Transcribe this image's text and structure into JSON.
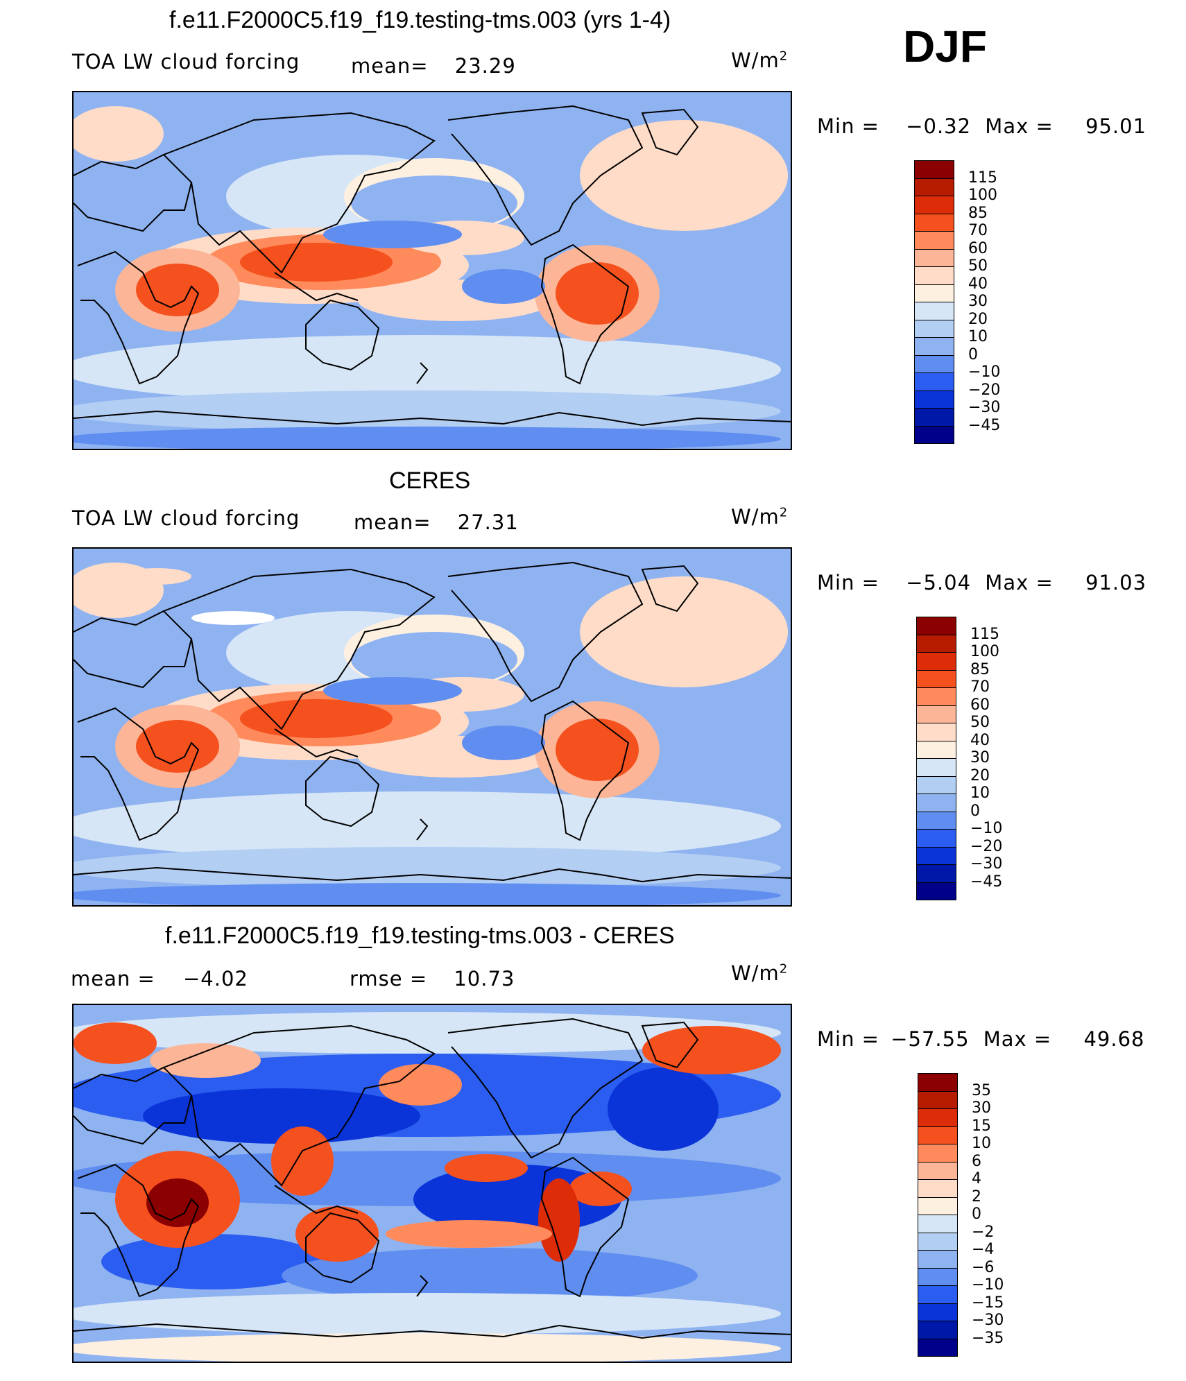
{
  "season": "DJF",
  "units_exp": "W/m",
  "units_sup": "2",
  "panels": [
    {
      "id": "model",
      "title": "f.e11.F2000C5.f19_f19.testing-tms.003 (yrs 1-4)",
      "left_label": "TOA LW cloud forcing",
      "stat_label": "mean=",
      "stat_value": "23.29",
      "minmax_min_label": "Min =",
      "minmax_min": "−0.32",
      "minmax_max_label": "Max =",
      "minmax_max": "95.01",
      "legend_labels": [
        "115",
        "100",
        "85",
        "70",
        "60",
        "50",
        "40",
        "30",
        "20",
        "10",
        "0",
        "−10",
        "−20",
        "−30",
        "−45"
      ],
      "legend_colors": [
        "#8b0000",
        "#b71c00",
        "#dc2c08",
        "#f4511e",
        "#ff8a5c",
        "#fcb596",
        "#fedcc8",
        "#fdf0e1",
        "#d6e6f6",
        "#b3cef3",
        "#8fb3f1",
        "#5f8ef0",
        "#2a5df0",
        "#0a34d8",
        "#0018a8",
        "#00008b"
      ],
      "chart_data": {
        "type": "heatmap",
        "title": "f.e11.F2000C5.f19_f19.testing-tms.003 (yrs 1-4)",
        "variable": "TOA LW cloud forcing",
        "units": "W/m2",
        "mean": 23.29,
        "min": -0.32,
        "max": 95.01,
        "contour_levels": [
          -45,
          -30,
          -20,
          -10,
          0,
          10,
          20,
          30,
          40,
          50,
          60,
          70,
          85,
          100,
          115
        ]
      }
    },
    {
      "id": "obs",
      "title": "CERES",
      "left_label": "TOA LW cloud forcing",
      "stat_label": "mean=",
      "stat_value": "27.31",
      "minmax_min_label": "Min =",
      "minmax_min": "−5.04",
      "minmax_max_label": "Max =",
      "minmax_max": "91.03",
      "legend_labels": [
        "115",
        "100",
        "85",
        "70",
        "60",
        "50",
        "40",
        "30",
        "20",
        "10",
        "0",
        "−10",
        "−20",
        "−30",
        "−45"
      ],
      "legend_colors": [
        "#8b0000",
        "#b71c00",
        "#dc2c08",
        "#f4511e",
        "#ff8a5c",
        "#fcb596",
        "#fedcc8",
        "#fdf0e1",
        "#d6e6f6",
        "#b3cef3",
        "#8fb3f1",
        "#5f8ef0",
        "#2a5df0",
        "#0a34d8",
        "#0018a8",
        "#00008b"
      ],
      "chart_data": {
        "type": "heatmap",
        "title": "CERES",
        "variable": "TOA LW cloud forcing",
        "units": "W/m2",
        "mean": 27.31,
        "min": -5.04,
        "max": 91.03,
        "contour_levels": [
          -45,
          -30,
          -20,
          -10,
          0,
          10,
          20,
          30,
          40,
          50,
          60,
          70,
          85,
          100,
          115
        ]
      }
    },
    {
      "id": "diff",
      "title": "f.e11.F2000C5.f19_f19.testing-tms.003 - CERES",
      "left_label_name": "mean =",
      "left_label_value": "−4.02",
      "stat_label": "rmse =",
      "stat_value": "10.73",
      "minmax_min_label": "Min =",
      "minmax_min": "−57.55",
      "minmax_max_label": "Max =",
      "minmax_max": "49.68",
      "legend_labels": [
        "35",
        "30",
        "15",
        "10",
        "6",
        "4",
        "2",
        "0",
        "−2",
        "−4",
        "−6",
        "−10",
        "−15",
        "−30",
        "−35"
      ],
      "legend_colors": [
        "#8b0000",
        "#b71c00",
        "#dc2c08",
        "#f4511e",
        "#ff8a5c",
        "#fcb596",
        "#fedcc8",
        "#fdf0e1",
        "#d6e6f6",
        "#b3cef3",
        "#8fb3f1",
        "#5f8ef0",
        "#2a5df0",
        "#0a34d8",
        "#0018a8",
        "#00008b"
      ],
      "chart_data": {
        "type": "heatmap",
        "title": "f.e11.F2000C5.f19_f19.testing-tms.003 - CERES",
        "units": "W/m2",
        "mean": -4.02,
        "rmse": 10.73,
        "min": -57.55,
        "max": 49.68,
        "contour_levels": [
          -35,
          -30,
          -15,
          -10,
          -6,
          -4,
          -2,
          0,
          2,
          4,
          6,
          10,
          15,
          30,
          35
        ]
      }
    }
  ]
}
